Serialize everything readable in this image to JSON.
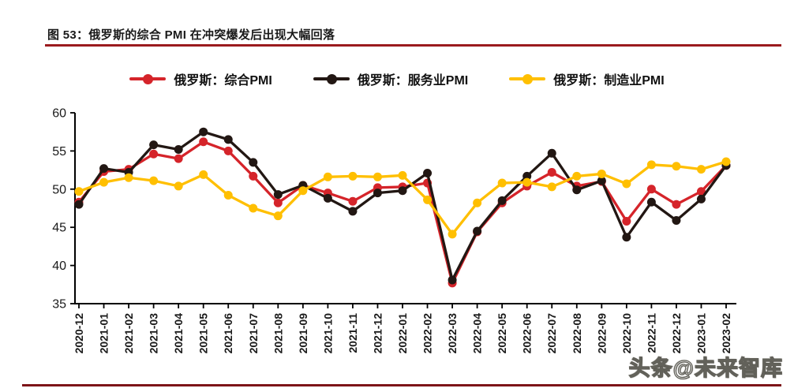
{
  "page": {
    "title": "图 53：俄罗斯的综合 PMI 在冲突爆发后出现大幅回落",
    "watermark": "头条@未来智库"
  },
  "colors": {
    "title_underline": "#9B1B1E",
    "bottom_rule": "#7D1418",
    "axis": "#000000",
    "tick_text": "#1a1a1a"
  },
  "chart_data": {
    "type": "line",
    "title": "俄罗斯的综合 PMI 在冲突爆发后出现大幅回落",
    "xlabel": "",
    "ylabel": "",
    "ylim": [
      35,
      60
    ],
    "ytick_step": 5,
    "grid": false,
    "legend_position": "top",
    "categories": [
      "2020-12",
      "2021-01",
      "2021-02",
      "2021-03",
      "2021-04",
      "2021-05",
      "2021-06",
      "2021-07",
      "2021-08",
      "2021-09",
      "2021-10",
      "2021-11",
      "2021-12",
      "2022-01",
      "2022-02",
      "2022-03",
      "2022-04",
      "2022-05",
      "2022-06",
      "2022-07",
      "2022-08",
      "2022-09",
      "2022-10",
      "2022-11",
      "2022-12",
      "2023-01",
      "2023-02"
    ],
    "series": [
      {
        "name": "俄罗斯：综合PMI",
        "color": "#D5242A",
        "values": [
          48.3,
          52.3,
          52.6,
          54.6,
          54.0,
          56.2,
          55.0,
          51.7,
          48.2,
          50.5,
          49.5,
          48.4,
          50.2,
          50.3,
          50.8,
          37.7,
          44.4,
          48.2,
          50.4,
          52.2,
          50.4,
          51.0,
          45.8,
          50.0,
          48.0,
          49.7,
          53.1
        ]
      },
      {
        "name": "俄罗斯：服务业PMI",
        "color": "#221713",
        "values": [
          48.0,
          52.7,
          52.2,
          55.8,
          55.2,
          57.5,
          56.5,
          53.5,
          49.3,
          50.5,
          48.8,
          47.1,
          49.5,
          49.8,
          52.1,
          38.1,
          44.5,
          48.5,
          51.7,
          54.7,
          49.9,
          51.1,
          43.7,
          48.3,
          45.9,
          48.7,
          53.1
        ]
      },
      {
        "name": "俄罗斯：制造业PMI",
        "color": "#FFBF00",
        "values": [
          49.7,
          50.9,
          51.5,
          51.1,
          50.4,
          51.9,
          49.2,
          47.5,
          46.5,
          49.8,
          51.6,
          51.7,
          51.6,
          51.8,
          48.6,
          44.1,
          48.2,
          50.8,
          50.9,
          50.3,
          51.7,
          52.0,
          50.7,
          53.2,
          53.0,
          52.6,
          53.6
        ]
      }
    ]
  }
}
